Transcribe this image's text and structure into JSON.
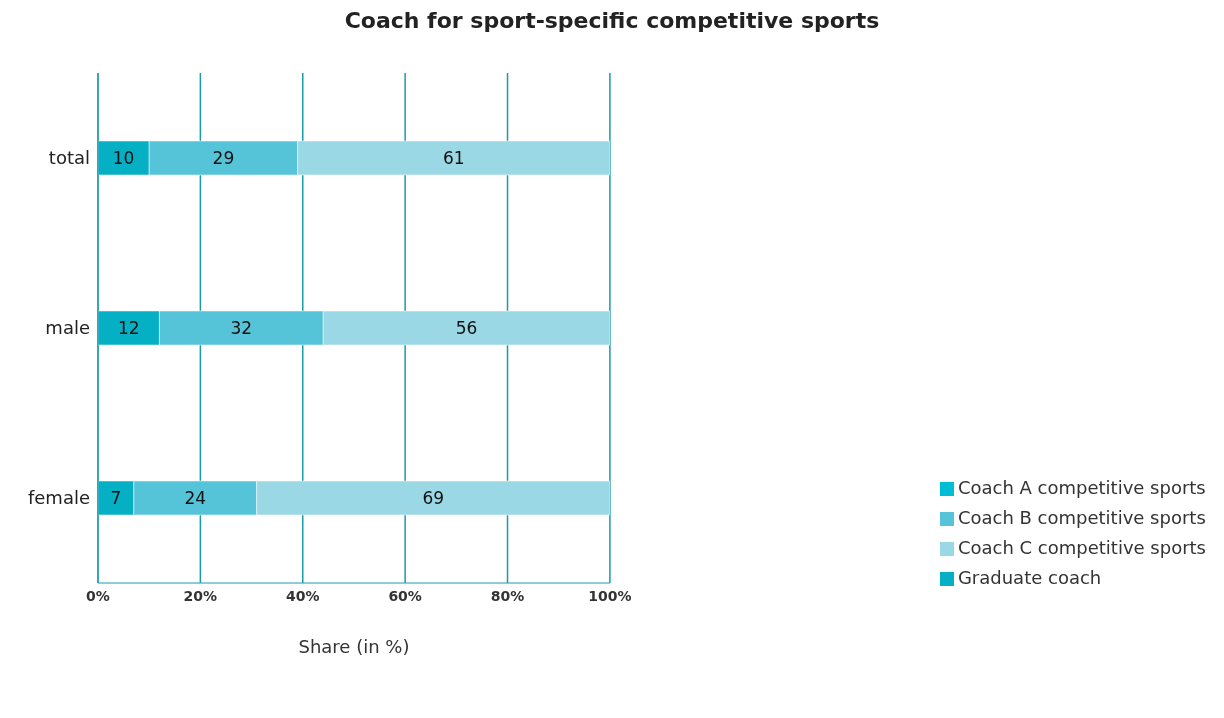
{
  "chart_data": {
    "type": "bar",
    "orientation": "horizontal",
    "stacked": true,
    "title": "Coach for sport-specific competitive sports",
    "xlabel": "Share (in %)",
    "categories": [
      "total",
      "male",
      "female"
    ],
    "series": [
      {
        "name": "Graduate coach",
        "color": "#06b0c4",
        "values": [
          10,
          12,
          7
        ]
      },
      {
        "name": "Coach A competitive sports",
        "color": "#00bcd4",
        "values": [
          null,
          null,
          null
        ]
      },
      {
        "name": "Coach B competitive sports",
        "color": "#55c4d8",
        "values": [
          29,
          32,
          24
        ]
      },
      {
        "name": "Coach C competitive sports",
        "color": "#9ad8e6",
        "values": [
          61,
          56,
          69
        ]
      }
    ],
    "xlim": [
      0,
      100
    ],
    "xticks": [
      {
        "value": 0,
        "label": "0%"
      },
      {
        "value": 20,
        "label": "20%"
      },
      {
        "value": 40,
        "label": "40%"
      },
      {
        "value": 60,
        "label": "60%"
      },
      {
        "value": 80,
        "label": "80%"
      },
      {
        "value": 100,
        "label": "100%"
      }
    ],
    "grid": "x",
    "legend": "bottom right",
    "data_labels": true
  }
}
